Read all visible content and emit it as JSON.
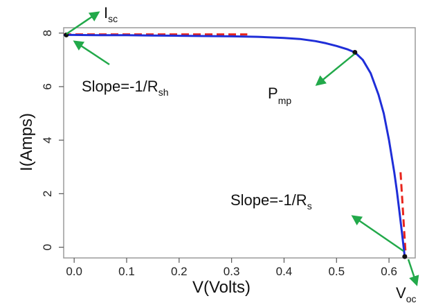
{
  "chart_data": {
    "type": "line",
    "title": "",
    "xlabel": "V(Volts)",
    "ylabel": "I(Amps)",
    "xlim": [
      -0.02,
      0.65
    ],
    "ylim": [
      -0.4,
      8.2
    ],
    "x_ticks": [
      "0.0",
      "0.1",
      "0.2",
      "0.3",
      "0.4",
      "0.5",
      "0.6"
    ],
    "y_ticks": [
      "0",
      "2",
      "4",
      "6",
      "8"
    ],
    "grid": false,
    "series": [
      {
        "color": "#1f2ed8",
        "x": [
          -0.02,
          0.0,
          0.05,
          0.1,
          0.15,
          0.2,
          0.25,
          0.3,
          0.35,
          0.4,
          0.43,
          0.46,
          0.48,
          0.5,
          0.52,
          0.535,
          0.55,
          0.565,
          0.58,
          0.59,
          0.6,
          0.61,
          0.615,
          0.62,
          0.625,
          0.63
        ],
        "y": [
          7.93,
          7.93,
          7.92,
          7.92,
          7.91,
          7.9,
          7.89,
          7.88,
          7.86,
          7.82,
          7.78,
          7.7,
          7.62,
          7.52,
          7.4,
          7.28,
          7.0,
          6.5,
          5.7,
          5.0,
          4.0,
          2.8,
          2.1,
          1.3,
          0.5,
          -0.35
        ]
      }
    ],
    "reference_lines": [
      {
        "color": "#e8241c",
        "x": [
          -0.02,
          0.33
        ],
        "y": [
          7.95,
          7.95
        ]
      },
      {
        "color": "#e8241c",
        "x": [
          0.622,
          0.632
        ],
        "y": [
          2.8,
          -0.35
        ]
      }
    ],
    "points": [
      {
        "x": -0.015,
        "y": 7.93
      },
      {
        "x": 0.535,
        "y": 7.28
      },
      {
        "x": 0.63,
        "y": -0.35
      }
    ],
    "annotations": {
      "isc": {
        "main": "I",
        "sub": "sc"
      },
      "rsh": {
        "main": "Slope=-1/R",
        "sub": "sh"
      },
      "pmp": {
        "main": "P",
        "sub": "mp"
      },
      "rs": {
        "main": "Slope=-1/R",
        "sub": "s"
      },
      "voc": {
        "main": "V",
        "sub": "oc"
      }
    },
    "colors": {
      "curve": "#1f2ed8",
      "reference": "#e8241c",
      "arrow": "#22a94a",
      "frame": "#9a9a9a"
    }
  }
}
